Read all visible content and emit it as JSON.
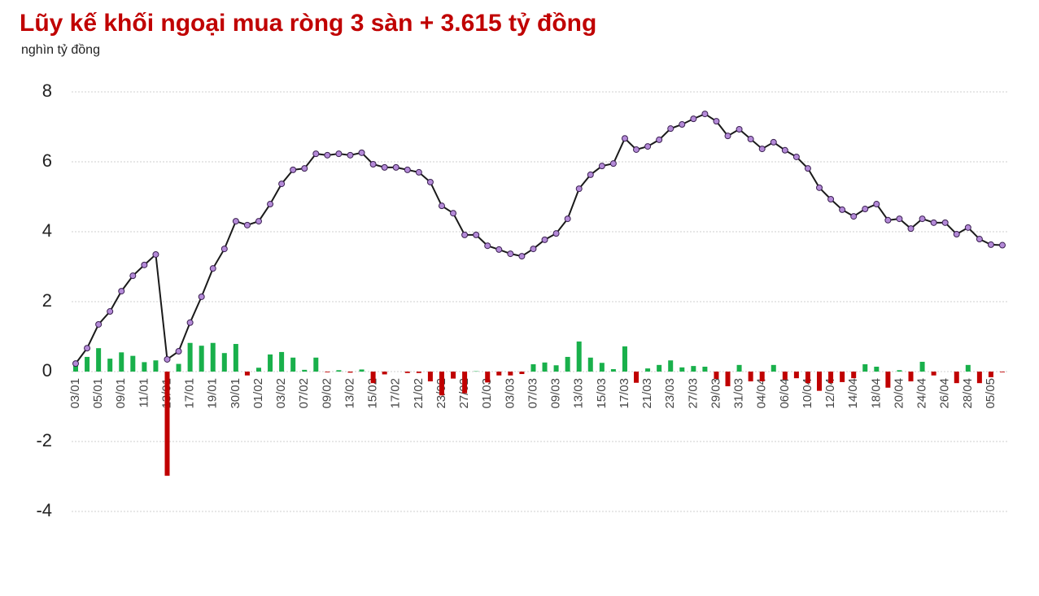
{
  "chart_data": {
    "type": "combo",
    "title": "Lũy kế khối ngoại mua ròng 3 sàn + 3.615 tỷ đồng",
    "subtitle": "nghìn tỷ đồng",
    "categories": [
      "03/01",
      null,
      "05/01",
      null,
      "09/01",
      null,
      "11/01",
      null,
      "13/01",
      null,
      "17/01",
      null,
      "19/01",
      null,
      "30/01",
      null,
      "01/02",
      null,
      "03/02",
      null,
      "07/02",
      null,
      "09/02",
      null,
      "13/02",
      null,
      "15/02",
      null,
      "17/02",
      null,
      "21/02",
      null,
      "23/02",
      null,
      "27/02",
      null,
      "01/03",
      null,
      "03/03",
      null,
      "07/03",
      null,
      "09/03",
      null,
      "13/03",
      null,
      "15/03",
      null,
      "17/03",
      null,
      "21/03",
      null,
      "23/03",
      null,
      "27/03",
      null,
      "29/03",
      null,
      "31/03",
      null,
      "04/04",
      null,
      "06/04",
      null,
      "10/04",
      null,
      "12/04",
      null,
      "14/04",
      null,
      "18/04",
      null,
      "20/04",
      null,
      "24/04",
      null,
      "26/04",
      null,
      "28/04",
      null,
      "05/05",
      null
    ],
    "series": [
      {
        "type": "bar",
        "color": "#19b04b",
        "negative_color": "#c00000",
        "values": [
          0.23,
          0.42,
          0.67,
          0.37,
          0.55,
          0.45,
          0.27,
          0.32,
          -2.98,
          0.22,
          0.82,
          0.74,
          0.82,
          0.53,
          0.79,
          -0.11,
          0.11,
          0.49,
          0.56,
          0.4,
          0.05,
          0.4,
          -0.02,
          0.04,
          -0.03,
          0.06,
          -0.33,
          -0.08,
          0,
          -0.04,
          -0.04,
          -0.28,
          -0.68,
          -0.2,
          -0.62,
          0.01,
          -0.31,
          -0.11,
          -0.11,
          -0.07,
          0.21,
          0.26,
          0.18,
          0.42,
          0.86,
          0.4,
          0.25,
          0.07,
          0.72,
          -0.32,
          0.09,
          0.19,
          0.32,
          0.12,
          0.16,
          0.14,
          -0.21,
          -0.42,
          0.19,
          -0.28,
          -0.28,
          0.19,
          -0.23,
          -0.19,
          -0.33,
          -0.55,
          -0.33,
          -0.3,
          -0.19,
          0.21,
          0.14,
          -0.46,
          0.04,
          -0.28,
          0.28,
          -0.11,
          0,
          -0.33,
          0.19,
          -0.33,
          -0.16,
          -0.02
        ]
      },
      {
        "type": "line",
        "color": "#1a1a1a",
        "marker_color": "#b48ad8",
        "values": [
          0.23,
          0.67,
          1.35,
          1.72,
          2.3,
          2.74,
          3.05,
          3.35,
          0.35,
          0.58,
          1.4,
          2.14,
          2.95,
          3.51,
          4.3,
          4.19,
          4.3,
          4.79,
          5.37,
          5.77,
          5.81,
          6.23,
          6.19,
          6.23,
          6.19,
          6.26,
          5.93,
          5.84,
          5.84,
          5.77,
          5.7,
          5.42,
          4.74,
          4.53,
          3.91,
          3.91,
          3.6,
          3.49,
          3.37,
          3.3,
          3.51,
          3.77,
          3.95,
          4.37,
          5.23,
          5.63,
          5.88,
          5.95,
          6.67,
          6.35,
          6.44,
          6.63,
          6.95,
          7.07,
          7.23,
          7.37,
          7.16,
          6.74,
          6.93,
          6.65,
          6.37,
          6.56,
          6.33,
          6.14,
          5.81,
          5.26,
          4.93,
          4.63,
          4.44,
          4.65,
          4.79,
          4.33,
          4.37,
          4.09,
          4.37,
          4.26,
          4.26,
          3.93,
          4.12,
          3.79,
          3.63,
          3.615
        ]
      }
    ],
    "ylim": [
      -4,
      8
    ],
    "yticks": [
      -4,
      -2,
      0,
      2,
      4,
      6,
      8
    ],
    "grid": true
  }
}
